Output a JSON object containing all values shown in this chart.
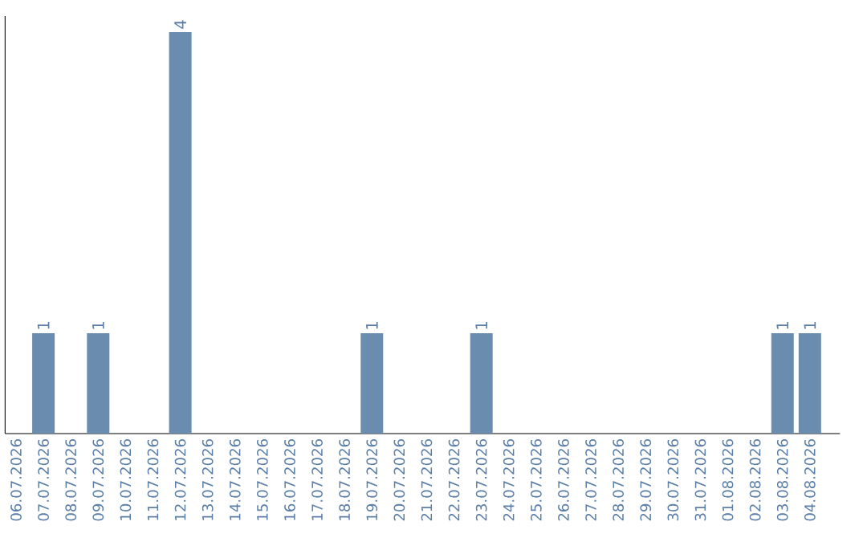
{
  "chart_data": {
    "type": "bar",
    "categories": [
      "06.07.2026",
      "07.07.2026",
      "08.07.2026",
      "09.07.2026",
      "10.07.2026",
      "11.07.2026",
      "12.07.2026",
      "13.07.2026",
      "14.07.2026",
      "15.07.2026",
      "16.07.2026",
      "17.07.2026",
      "18.07.2026",
      "19.07.2026",
      "20.07.2026",
      "21.07.2026",
      "22.07.2026",
      "23.07.2026",
      "24.07.2026",
      "25.07.2026",
      "26.07.2026",
      "27.07.2026",
      "28.07.2026",
      "29.07.2026",
      "30.07.2026",
      "31.07.2026",
      "01.08.2026",
      "02.08.2026",
      "03.08.2026",
      "04.08.2026"
    ],
    "values": [
      0,
      1,
      0,
      1,
      0,
      0,
      4,
      0,
      0,
      0,
      0,
      0,
      0,
      1,
      0,
      0,
      0,
      1,
      0,
      0,
      0,
      0,
      0,
      0,
      0,
      0,
      0,
      0,
      1,
      1
    ],
    "value_labels": [
      null,
      "1",
      null,
      "1",
      null,
      null,
      "4",
      null,
      null,
      null,
      null,
      null,
      null,
      "1",
      null,
      null,
      null,
      "1",
      null,
      null,
      null,
      null,
      null,
      null,
      null,
      null,
      null,
      null,
      "1",
      "1"
    ],
    "color": "#6a8caf",
    "grid": false,
    "tick_labels": "x"
  }
}
